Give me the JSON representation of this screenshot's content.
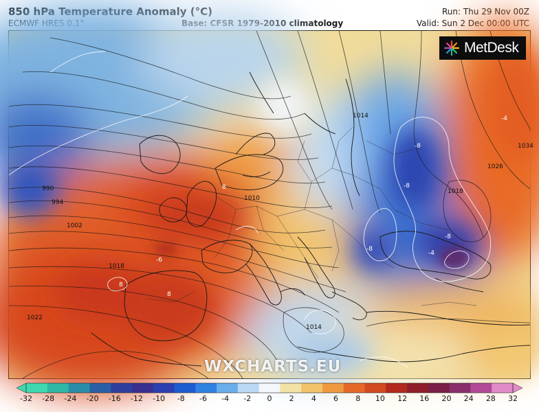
{
  "header": {
    "title": "850 hPa Temperature Anomaly (°C)",
    "model": "ECMWF HRES 0.1°",
    "base": "Base: CFSR 1979-2010 climatology",
    "run": "Run: Thu 29 Nov 00Z",
    "valid": "Valid: Sun 2 Dec 00:00 UTC"
  },
  "logo": {
    "text": "MetDesk",
    "icon": "metdesk-burst-icon"
  },
  "watermark": "WXCHARTS.EU",
  "isobar_labels": [
    "990",
    "994",
    "1002",
    "1010",
    "1014",
    "1018",
    "1022",
    "1014",
    "1018",
    "1026",
    "1034"
  ],
  "anomaly_labels": [
    "-8",
    "-8",
    "-8",
    "-8",
    "-6",
    "-4",
    "-4",
    "8",
    "8",
    "8"
  ],
  "colorbar": {
    "ticks": [
      "-32",
      "-28",
      "-24",
      "-20",
      "-16",
      "-12",
      "-10",
      "-8",
      "-6",
      "-4",
      "-2",
      "0",
      "2",
      "4",
      "6",
      "8",
      "10",
      "12",
      "16",
      "20",
      "24",
      "28",
      "32"
    ],
    "colors": [
      "#3fd8b0",
      "#2fb7a6",
      "#2a8ea8",
      "#2a5fa6",
      "#2f3f9e",
      "#3a2f8e",
      "#2b3fb0",
      "#1d5cd0",
      "#2f82e0",
      "#6aaeea",
      "#b9d8f2",
      "#f4f7fb",
      "#f3e2a6",
      "#f2c36a",
      "#ef9a3f",
      "#e56a2a",
      "#d24a21",
      "#b12a1c",
      "#8e1f2a",
      "#7a2048",
      "#8a2f6c",
      "#b24a97",
      "#e08cc8"
    ]
  }
}
